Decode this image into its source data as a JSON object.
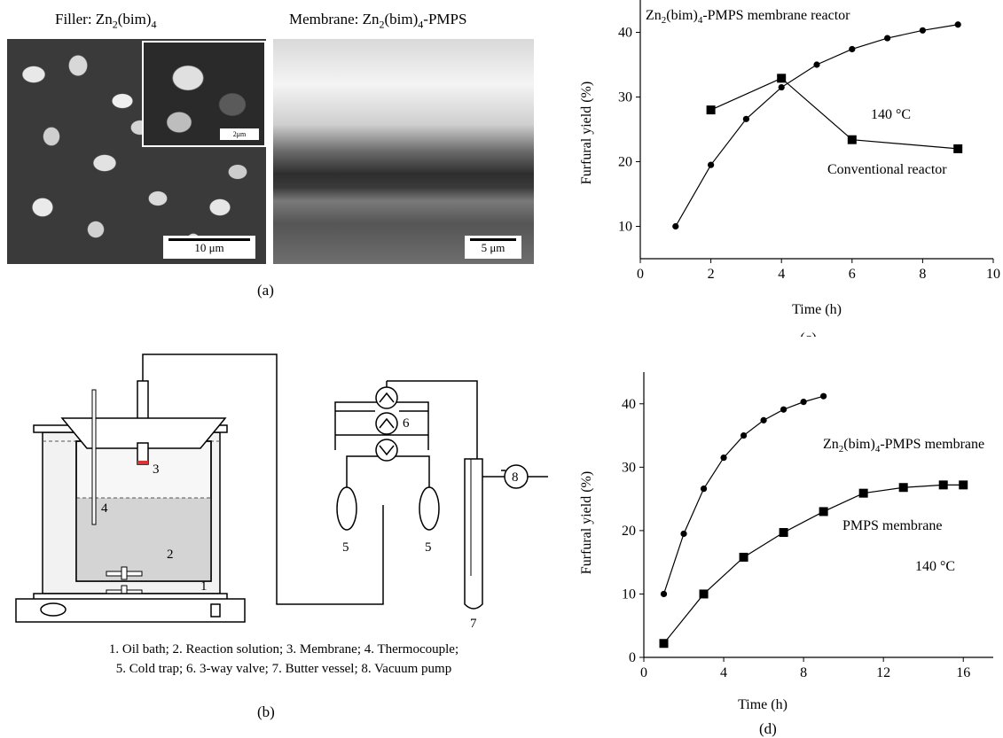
{
  "panel_a": {
    "filler_prefix": "Filler: Zn",
    "filler_sub1": "2",
    "filler_mid": "(bim)",
    "filler_sub2": "4",
    "membrane_prefix": "Membrane: Zn",
    "membrane_sub1": "2",
    "membrane_mid": "(bim)",
    "membrane_sub2": "4",
    "membrane_suffix": "-PMPS",
    "scale_main": "10 μm",
    "scale_inset": "2μm",
    "scale_membrane": "5 μm",
    "label": "(a)"
  },
  "panel_b": {
    "numbers": [
      "1",
      "2",
      "3",
      "4",
      "5",
      "5",
      "6",
      "7",
      "8"
    ],
    "legend_line1": "1. Oil bath; 2. Reaction solution; 3. Membrane; 4. Thermocouple;",
    "legend_line2": "5. Cold trap; 6. 3-way valve; 7. Butter vessel; 8. Vacuum pump",
    "label": "(b)"
  },
  "chart_data": [
    {
      "type": "line",
      "xlabel": "Time (h)",
      "ylabel": "Furfural yield (%)",
      "xlim": [
        0,
        10
      ],
      "ylim": [
        5,
        45
      ],
      "xticks": [
        0,
        2,
        4,
        6,
        8,
        10
      ],
      "yticks": [
        10,
        20,
        30,
        40
      ],
      "grid": false,
      "series": [
        {
          "name": "Zn2(bim)4-PMPS membrane reactor",
          "marker": "circle",
          "x": [
            1,
            2,
            3,
            4,
            5,
            6,
            7,
            8,
            9
          ],
          "y": [
            10,
            19.5,
            26.6,
            31.5,
            35,
            37.4,
            39.1,
            40.3,
            41.2
          ]
        },
        {
          "name": "Conventional reactor",
          "marker": "square",
          "x": [
            2,
            4,
            6,
            9
          ],
          "y": [
            28,
            32.9,
            23.4,
            22
          ]
        }
      ],
      "annotations": {
        "series1_prefix": "Zn",
        "series1_sub1": "2",
        "series1_mid": "(bim)",
        "series1_sub2": "4",
        "series1_suffix": "-PMPS membrane reactor",
        "series2": "Conventional reactor",
        "temperature": "140 °C"
      },
      "panel_label": "(c)"
    },
    {
      "type": "line",
      "xlabel": "Time (h)",
      "ylabel": "Furfural yield (%)",
      "xlim": [
        0,
        17.5
      ],
      "ylim": [
        0,
        45
      ],
      "xticks": [
        0,
        4,
        8,
        12,
        16
      ],
      "yticks": [
        0,
        10,
        20,
        30,
        40
      ],
      "grid": false,
      "series": [
        {
          "name": "Zn2(bim)4-PMPS membrane",
          "marker": "circle",
          "x": [
            1,
            2,
            3,
            4,
            5,
            6,
            7,
            8,
            9
          ],
          "y": [
            10,
            19.5,
            26.6,
            31.5,
            35,
            37.4,
            39.1,
            40.3,
            41.2
          ]
        },
        {
          "name": "PMPS membrane",
          "marker": "square",
          "x": [
            1,
            3,
            5,
            7,
            9,
            11,
            13,
            15,
            16
          ],
          "y": [
            2.2,
            10,
            15.8,
            19.7,
            23,
            25.9,
            26.8,
            27.2,
            27.2
          ]
        }
      ],
      "annotations": {
        "series1_prefix": "Zn",
        "series1_sub1": "2",
        "series1_mid": "(bim)",
        "series1_sub2": "4",
        "series1_suffix": "-PMPS membrane",
        "series2": "PMPS membrane",
        "temperature": "140 °C"
      },
      "panel_label": "(d)"
    }
  ]
}
